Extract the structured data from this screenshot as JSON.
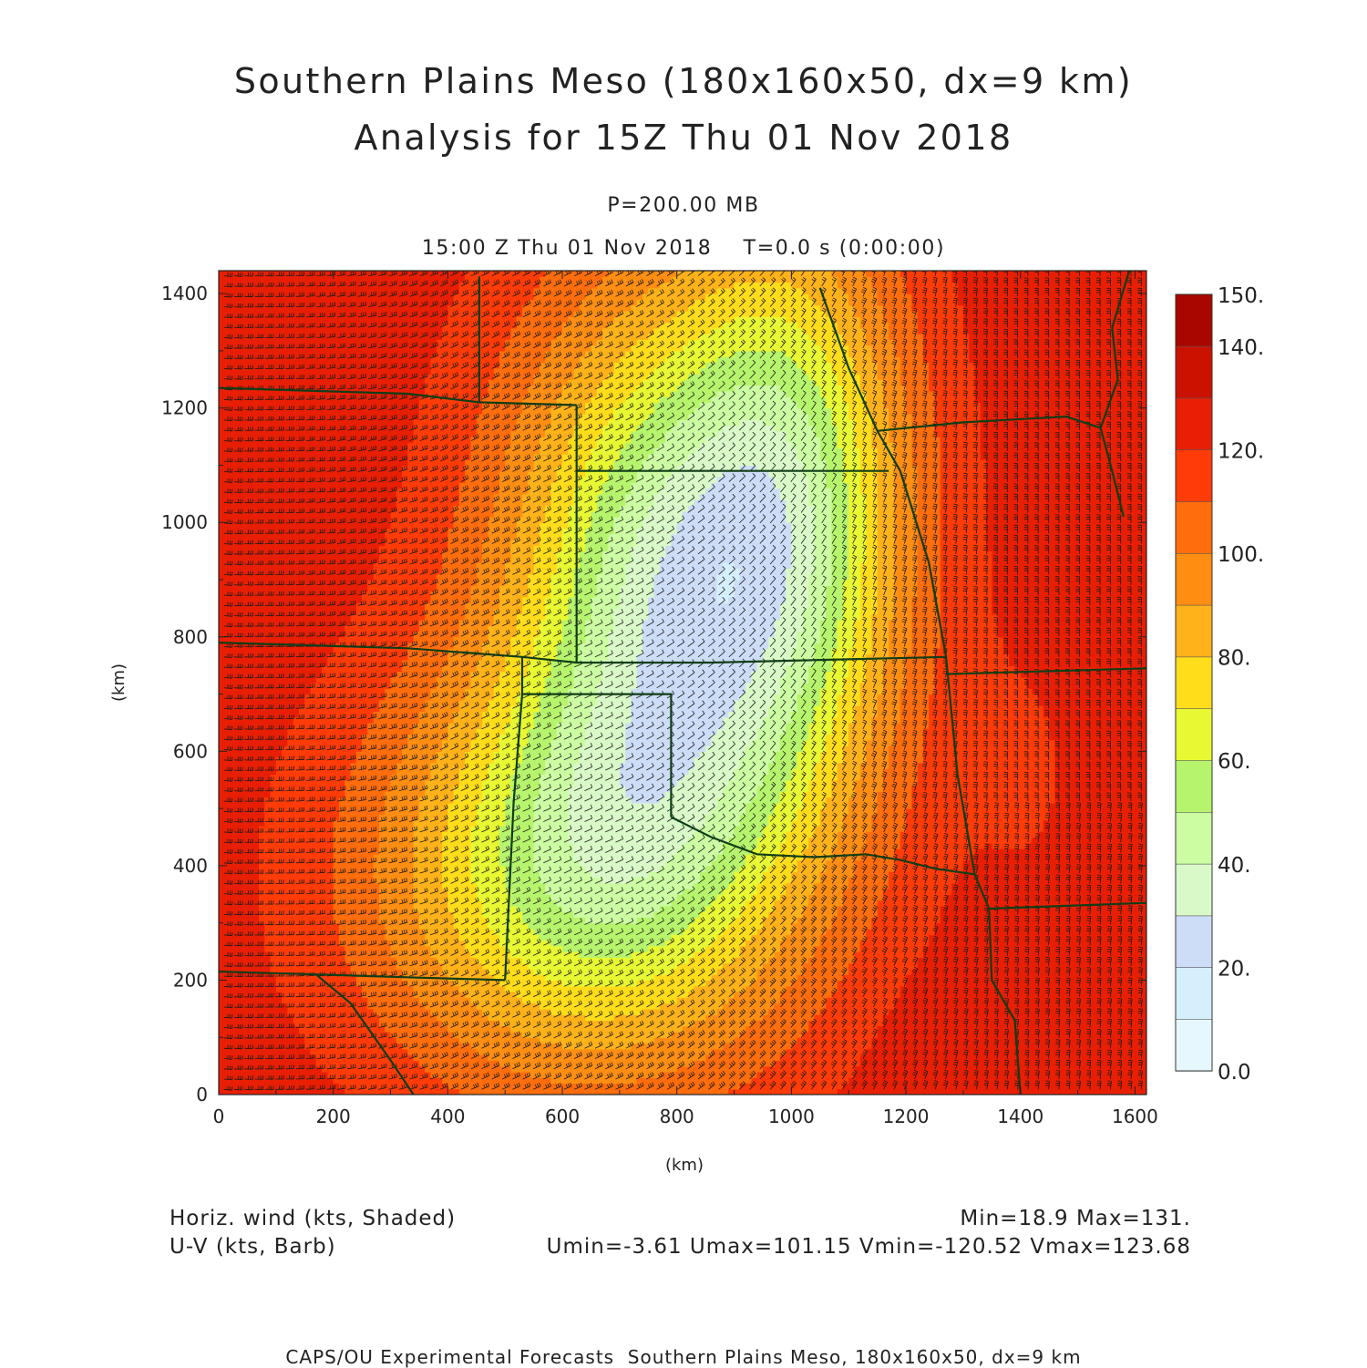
{
  "title": {
    "line1": "Southern Plains Meso (180x160x50, dx=9 km)",
    "line2": "Analysis for 15Z Thu 01 Nov 2018"
  },
  "subtitle": {
    "level": "P=200.00 MB",
    "time": "15:00 Z Thu 01 Nov 2018    T=0.0 s (0:00:00)"
  },
  "footer": {
    "field1": "Horiz. wind (kts, Shaded)",
    "field2": "U-V (kts, Barb)",
    "minmax": "Min=18.9 Max=131.",
    "uvstats": "Umin=-3.61 Umax=101.15 Vmin=-120.52 Vmax=123.68",
    "credit": "CAPS/OU Experimental Forecasts  Southern Plains Meso, 180x160x50, dx=9 km"
  },
  "chart_data": {
    "type": "heatmap",
    "xlabel": "(km)",
    "ylabel": "(km)",
    "xlim": [
      0,
      1620
    ],
    "ylim": [
      0,
      1440
    ],
    "x_ticks": [
      0,
      200,
      400,
      600,
      800,
      1000,
      1200,
      1400,
      1600
    ],
    "y_ticks": [
      0,
      200,
      400,
      600,
      800,
      1000,
      1200,
      1400
    ],
    "variable": "Horiz. wind (kts, Shaded)",
    "overlay": "U-V (kts, Barb)",
    "min": 18.9,
    "max": 131,
    "colorbar": {
      "levels": [
        0,
        10,
        20,
        30,
        40,
        50,
        60,
        70,
        80,
        90,
        100,
        110,
        120,
        130,
        140,
        150
      ],
      "labels": [
        "0.0",
        "20.",
        "40.",
        "60.",
        "80.",
        "100.",
        "120.",
        "140.",
        "150."
      ],
      "colors": [
        "#e6f8fe",
        "#d6effd",
        "#cdddf7",
        "#daf9c8",
        "#ccfda3",
        "#b7f46d",
        "#e8f832",
        "#ffdd1a",
        "#ffb219",
        "#ff8e12",
        "#ff6d0c",
        "#ff3b08",
        "#e81f05",
        "#cb1201",
        "#aa0600"
      ]
    }
  },
  "colors": {
    "boundary": "#0f3d17",
    "barb": "#1b1b1b",
    "axis": "#222222"
  }
}
